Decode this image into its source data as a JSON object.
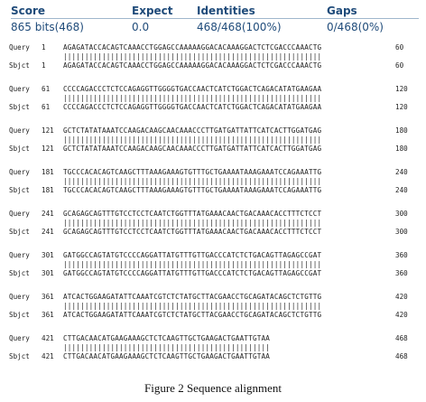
{
  "header": {
    "score_label": "Score",
    "score_value": "865 bits(468)",
    "expect_label": "Expect",
    "expect_value": "0.0",
    "identities_label": "Identities",
    "identities_value": "468/468(100%)",
    "gaps_label": "Gaps",
    "gaps_value": "0/468(0%)"
  },
  "alignment": [
    {
      "q_start": "1",
      "q_seq": "AGAGATACCACAGTCAAACCTGGAGCCAAAAAGGACACAAAGGACTCTCGACCCAAACTG",
      "q_end": "60",
      "s_start": "1",
      "s_seq": "AGAGATACCACAGTCAAACCTGGAGCCAAAAAGGACACAAAGGACTCTCGACCCAAACTG",
      "s_end": "60"
    },
    {
      "q_start": "61",
      "q_seq": "CCCCAGACCCTCTCCAGAGGTTGGGGTGACCAACTCATCTGGACTCAGACATATGAAGAA",
      "q_end": "120",
      "s_start": "61",
      "s_seq": "CCCCAGACCCTCTCCAGAGGTTGGGGTGACCAACTCATCTGGACTCAGACATATGAAGAA",
      "s_end": "120"
    },
    {
      "q_start": "121",
      "q_seq": "GCTCTATATAAATCCAAGACAAGCAACAAACCCTTGATGATTATTCATCACTTGGATGAG",
      "q_end": "180",
      "s_start": "121",
      "s_seq": "GCTCTATATAAATCCAAGACAAGCAACAAACCCTTGATGATTATTCATCACTTGGATGAG",
      "s_end": "180"
    },
    {
      "q_start": "181",
      "q_seq": "TGCCCACACAGTCAAGCTTTAAAGAAAGTGTTTGCTGAAAATAAAGAAATCCAGAAATTG",
      "q_end": "240",
      "s_start": "181",
      "s_seq": "TGCCCACACAGTCAAGCTTTAAAGAAAGTGTTTGCTGAAAATAAAGAAATCCAGAAATTG",
      "s_end": "240"
    },
    {
      "q_start": "241",
      "q_seq": "GCAGAGCAGTTTGTCCTCCTCAATCTGGTTTATGAAACAACTGACAAACACCTTTCTCCT",
      "q_end": "300",
      "s_start": "241",
      "s_seq": "GCAGAGCAGTTTGTCCTCCTCAATCTGGTTTATGAAACAACTGACAAACACCTTTCTCCT",
      "s_end": "300"
    },
    {
      "q_start": "301",
      "q_seq": "GATGGCCAGTATGTCCCCAGGATTATGTTTGTTGACCCATCTCTGACAGTTAGAGCCGAT",
      "q_end": "360",
      "s_start": "301",
      "s_seq": "GATGGCCAGTATGTCCCCAGGATTATGTTTGTTGACCCATCTCTGACAGTTAGAGCCGAT",
      "s_end": "360"
    },
    {
      "q_start": "361",
      "q_seq": "ATCACTGGAAGATATTCAAATCGTCTCTATGCTTACGAACCTGCAGATACAGCTCTGTTG",
      "q_end": "420",
      "s_start": "361",
      "s_seq": "ATCACTGGAAGATATTCAAATCGTCTCTATGCTTACGAACCTGCAGATACAGCTCTGTTG",
      "s_end": "420"
    },
    {
      "q_start": "421",
      "q_seq": "CTTGACAACATGAAGAAAGCTCTCAAGTTGCTGAAGACTGAATTGTAA",
      "q_end": "468",
      "s_start": "421",
      "s_seq": "CTTGACAACATGAAGAAAGCTCTCAAGTTGCTGAAGACTGAATTGTAA",
      "s_end": "468"
    }
  ],
  "labels": {
    "query": "Query",
    "subject": "Sbjct"
  },
  "caption": "Figure 2 Sequence alignment"
}
